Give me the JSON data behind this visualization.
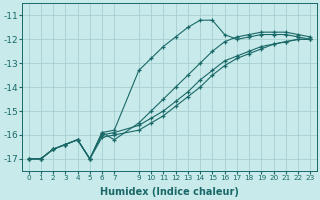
{
  "xlabel": "Humidex (Indice chaleur)",
  "background_color": "#c8eaea",
  "grid_color": "#a8d0d0",
  "line_color": "#1a6868",
  "xlim": [
    -0.5,
    23.5
  ],
  "ylim": [
    -17.5,
    -10.5
  ],
  "yticks": [
    -17,
    -16,
    -15,
    -14,
    -13,
    -12,
    -11
  ],
  "xticks": [
    0,
    1,
    2,
    3,
    4,
    5,
    6,
    7,
    9,
    10,
    11,
    12,
    13,
    14,
    15,
    16,
    17,
    18,
    19,
    20,
    21,
    22,
    23
  ],
  "lines": [
    {
      "x": [
        0,
        1,
        2,
        3,
        4,
        5,
        6,
        7,
        9,
        10,
        11,
        12,
        13,
        14,
        15,
        16,
        17,
        18,
        19,
        20,
        21,
        22,
        23
      ],
      "y": [
        -17.0,
        -17.0,
        -16.6,
        -16.4,
        -16.2,
        -17.0,
        -15.9,
        -15.8,
        -13.3,
        -12.8,
        -12.3,
        -11.9,
        -11.5,
        -11.2,
        -11.2,
        -11.8,
        -12.0,
        -11.9,
        -11.8,
        -11.8,
        -11.8,
        -11.9,
        -12.0
      ]
    },
    {
      "x": [
        0,
        1,
        2,
        3,
        4,
        5,
        6,
        7,
        9,
        10,
        11,
        12,
        13,
        14,
        15,
        16,
        17,
        18,
        19,
        20,
        21,
        22,
        23
      ],
      "y": [
        -17.0,
        -17.0,
        -16.6,
        -16.4,
        -16.2,
        -17.0,
        -15.9,
        -16.2,
        -15.5,
        -15.0,
        -14.5,
        -14.0,
        -13.5,
        -13.0,
        -12.5,
        -12.1,
        -11.9,
        -11.8,
        -11.7,
        -11.7,
        -11.7,
        -11.8,
        -11.9
      ]
    },
    {
      "x": [
        0,
        1,
        2,
        3,
        4,
        5,
        6,
        7,
        9,
        10,
        11,
        12,
        13,
        14,
        15,
        16,
        17,
        18,
        19,
        20,
        21,
        22,
        23
      ],
      "y": [
        -17.0,
        -17.0,
        -16.6,
        -16.4,
        -16.2,
        -17.0,
        -16.0,
        -15.9,
        -15.6,
        -15.3,
        -15.0,
        -14.6,
        -14.2,
        -13.7,
        -13.3,
        -12.9,
        -12.7,
        -12.5,
        -12.3,
        -12.2,
        -12.1,
        -12.0,
        -12.0
      ]
    },
    {
      "x": [
        0,
        1,
        2,
        3,
        4,
        5,
        6,
        7,
        9,
        10,
        11,
        12,
        13,
        14,
        15,
        16,
        17,
        18,
        19,
        20,
        21,
        22,
        23
      ],
      "y": [
        -17.0,
        -17.0,
        -16.6,
        -16.4,
        -16.2,
        -17.0,
        -16.1,
        -16.0,
        -15.8,
        -15.5,
        -15.2,
        -14.8,
        -14.4,
        -14.0,
        -13.5,
        -13.1,
        -12.8,
        -12.6,
        -12.4,
        -12.2,
        -12.1,
        -12.0,
        -12.0
      ]
    }
  ],
  "figsize": [
    3.2,
    2.0
  ],
  "dpi": 100
}
